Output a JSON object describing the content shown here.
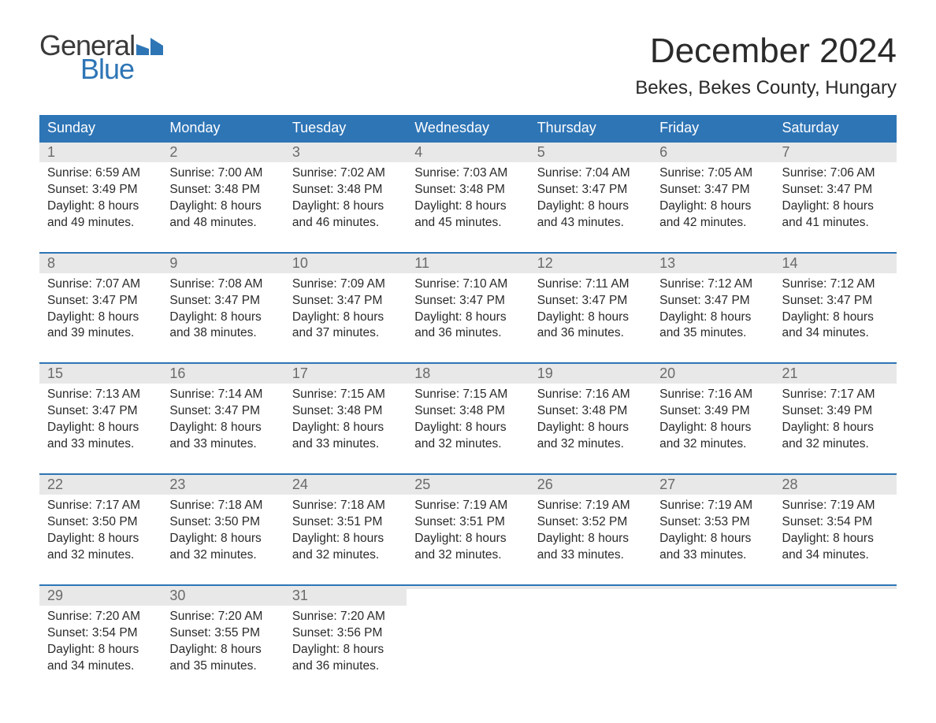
{
  "logo": {
    "general": "General",
    "blue": "Blue"
  },
  "title": "December 2024",
  "location": "Bekes, Bekes County, Hungary",
  "weekdays": [
    "Sunday",
    "Monday",
    "Tuesday",
    "Wednesday",
    "Thursday",
    "Friday",
    "Saturday"
  ],
  "colors": {
    "header_bg": "#2e75b6",
    "header_text": "#ffffff",
    "daynum_bg": "#e8e8e8",
    "daynum_text": "#6a6a6a",
    "body_text": "#2a2a2a",
    "week_border": "#2e75b6",
    "logo_general": "#3a3a3a",
    "logo_blue": "#2e75b6",
    "background": "#ffffff"
  },
  "typography": {
    "title_fontsize": 44,
    "location_fontsize": 24,
    "weekday_fontsize": 18,
    "daynum_fontsize": 18,
    "body_fontsize": 15.5,
    "logo_fontsize": 36
  },
  "weeks": [
    [
      {
        "n": "1",
        "sunrise": "Sunrise: 6:59 AM",
        "sunset": "Sunset: 3:49 PM",
        "d1": "Daylight: 8 hours",
        "d2": "and 49 minutes."
      },
      {
        "n": "2",
        "sunrise": "Sunrise: 7:00 AM",
        "sunset": "Sunset: 3:48 PM",
        "d1": "Daylight: 8 hours",
        "d2": "and 48 minutes."
      },
      {
        "n": "3",
        "sunrise": "Sunrise: 7:02 AM",
        "sunset": "Sunset: 3:48 PM",
        "d1": "Daylight: 8 hours",
        "d2": "and 46 minutes."
      },
      {
        "n": "4",
        "sunrise": "Sunrise: 7:03 AM",
        "sunset": "Sunset: 3:48 PM",
        "d1": "Daylight: 8 hours",
        "d2": "and 45 minutes."
      },
      {
        "n": "5",
        "sunrise": "Sunrise: 7:04 AM",
        "sunset": "Sunset: 3:47 PM",
        "d1": "Daylight: 8 hours",
        "d2": "and 43 minutes."
      },
      {
        "n": "6",
        "sunrise": "Sunrise: 7:05 AM",
        "sunset": "Sunset: 3:47 PM",
        "d1": "Daylight: 8 hours",
        "d2": "and 42 minutes."
      },
      {
        "n": "7",
        "sunrise": "Sunrise: 7:06 AM",
        "sunset": "Sunset: 3:47 PM",
        "d1": "Daylight: 8 hours",
        "d2": "and 41 minutes."
      }
    ],
    [
      {
        "n": "8",
        "sunrise": "Sunrise: 7:07 AM",
        "sunset": "Sunset: 3:47 PM",
        "d1": "Daylight: 8 hours",
        "d2": "and 39 minutes."
      },
      {
        "n": "9",
        "sunrise": "Sunrise: 7:08 AM",
        "sunset": "Sunset: 3:47 PM",
        "d1": "Daylight: 8 hours",
        "d2": "and 38 minutes."
      },
      {
        "n": "10",
        "sunrise": "Sunrise: 7:09 AM",
        "sunset": "Sunset: 3:47 PM",
        "d1": "Daylight: 8 hours",
        "d2": "and 37 minutes."
      },
      {
        "n": "11",
        "sunrise": "Sunrise: 7:10 AM",
        "sunset": "Sunset: 3:47 PM",
        "d1": "Daylight: 8 hours",
        "d2": "and 36 minutes."
      },
      {
        "n": "12",
        "sunrise": "Sunrise: 7:11 AM",
        "sunset": "Sunset: 3:47 PM",
        "d1": "Daylight: 8 hours",
        "d2": "and 36 minutes."
      },
      {
        "n": "13",
        "sunrise": "Sunrise: 7:12 AM",
        "sunset": "Sunset: 3:47 PM",
        "d1": "Daylight: 8 hours",
        "d2": "and 35 minutes."
      },
      {
        "n": "14",
        "sunrise": "Sunrise: 7:12 AM",
        "sunset": "Sunset: 3:47 PM",
        "d1": "Daylight: 8 hours",
        "d2": "and 34 minutes."
      }
    ],
    [
      {
        "n": "15",
        "sunrise": "Sunrise: 7:13 AM",
        "sunset": "Sunset: 3:47 PM",
        "d1": "Daylight: 8 hours",
        "d2": "and 33 minutes."
      },
      {
        "n": "16",
        "sunrise": "Sunrise: 7:14 AM",
        "sunset": "Sunset: 3:47 PM",
        "d1": "Daylight: 8 hours",
        "d2": "and 33 minutes."
      },
      {
        "n": "17",
        "sunrise": "Sunrise: 7:15 AM",
        "sunset": "Sunset: 3:48 PM",
        "d1": "Daylight: 8 hours",
        "d2": "and 33 minutes."
      },
      {
        "n": "18",
        "sunrise": "Sunrise: 7:15 AM",
        "sunset": "Sunset: 3:48 PM",
        "d1": "Daylight: 8 hours",
        "d2": "and 32 minutes."
      },
      {
        "n": "19",
        "sunrise": "Sunrise: 7:16 AM",
        "sunset": "Sunset: 3:48 PM",
        "d1": "Daylight: 8 hours",
        "d2": "and 32 minutes."
      },
      {
        "n": "20",
        "sunrise": "Sunrise: 7:16 AM",
        "sunset": "Sunset: 3:49 PM",
        "d1": "Daylight: 8 hours",
        "d2": "and 32 minutes."
      },
      {
        "n": "21",
        "sunrise": "Sunrise: 7:17 AM",
        "sunset": "Sunset: 3:49 PM",
        "d1": "Daylight: 8 hours",
        "d2": "and 32 minutes."
      }
    ],
    [
      {
        "n": "22",
        "sunrise": "Sunrise: 7:17 AM",
        "sunset": "Sunset: 3:50 PM",
        "d1": "Daylight: 8 hours",
        "d2": "and 32 minutes."
      },
      {
        "n": "23",
        "sunrise": "Sunrise: 7:18 AM",
        "sunset": "Sunset: 3:50 PM",
        "d1": "Daylight: 8 hours",
        "d2": "and 32 minutes."
      },
      {
        "n": "24",
        "sunrise": "Sunrise: 7:18 AM",
        "sunset": "Sunset: 3:51 PM",
        "d1": "Daylight: 8 hours",
        "d2": "and 32 minutes."
      },
      {
        "n": "25",
        "sunrise": "Sunrise: 7:19 AM",
        "sunset": "Sunset: 3:51 PM",
        "d1": "Daylight: 8 hours",
        "d2": "and 32 minutes."
      },
      {
        "n": "26",
        "sunrise": "Sunrise: 7:19 AM",
        "sunset": "Sunset: 3:52 PM",
        "d1": "Daylight: 8 hours",
        "d2": "and 33 minutes."
      },
      {
        "n": "27",
        "sunrise": "Sunrise: 7:19 AM",
        "sunset": "Sunset: 3:53 PM",
        "d1": "Daylight: 8 hours",
        "d2": "and 33 minutes."
      },
      {
        "n": "28",
        "sunrise": "Sunrise: 7:19 AM",
        "sunset": "Sunset: 3:54 PM",
        "d1": "Daylight: 8 hours",
        "d2": "and 34 minutes."
      }
    ],
    [
      {
        "n": "29",
        "sunrise": "Sunrise: 7:20 AM",
        "sunset": "Sunset: 3:54 PM",
        "d1": "Daylight: 8 hours",
        "d2": "and 34 minutes."
      },
      {
        "n": "30",
        "sunrise": "Sunrise: 7:20 AM",
        "sunset": "Sunset: 3:55 PM",
        "d1": "Daylight: 8 hours",
        "d2": "and 35 minutes."
      },
      {
        "n": "31",
        "sunrise": "Sunrise: 7:20 AM",
        "sunset": "Sunset: 3:56 PM",
        "d1": "Daylight: 8 hours",
        "d2": "and 36 minutes."
      },
      {
        "empty": true
      },
      {
        "empty": true
      },
      {
        "empty": true
      },
      {
        "empty": true
      }
    ]
  ]
}
